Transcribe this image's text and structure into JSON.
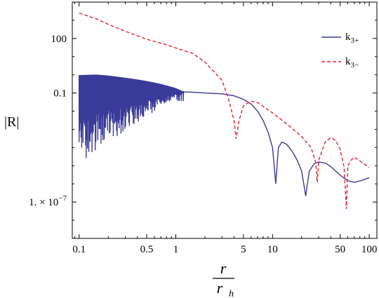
{
  "chart_data": {
    "type": "line",
    "title": "",
    "xlabel": {
      "numerator": "r",
      "denominator": "r",
      "denominator_subscript": "h"
    },
    "ylabel": "|R|",
    "x_scale": "log",
    "y_scale": "log",
    "xlim": [
      0.085,
      120
    ],
    "ylim": [
      1e-09,
      10000
    ],
    "grid": false,
    "legend_position": "top-right",
    "x_ticks": [
      {
        "value": 0.1,
        "label": "0.1"
      },
      {
        "value": 0.5,
        "label": "0.5"
      },
      {
        "value": 1,
        "label": "1"
      },
      {
        "value": 5,
        "label": "5"
      },
      {
        "value": 10,
        "label": "10"
      },
      {
        "value": 50,
        "label": "50"
      },
      {
        "value": 100,
        "label": "100"
      }
    ],
    "y_ticks": [
      {
        "value": 100,
        "label": "100"
      },
      {
        "value": 0.1,
        "label": "0.1"
      },
      {
        "value": 1e-07,
        "label": "1. × 10",
        "exponent": "−7"
      }
    ],
    "series": [
      {
        "name": "k3+",
        "name_main": "k",
        "name_sub": "3+",
        "color": "#3a3a9a",
        "style": "solid",
        "oscillation_region": {
          "x_end": 1.2,
          "upper_start": 8,
          "spike_min_floor": 1e-05
        },
        "points": [
          [
            0.1,
            0.12
          ],
          [
            0.15,
            0.15
          ],
          [
            0.2,
            0.15
          ],
          [
            0.3,
            0.14
          ],
          [
            0.5,
            0.13
          ],
          [
            0.8,
            0.12
          ],
          [
            1.0,
            0.12
          ],
          [
            1.5,
            0.11
          ],
          [
            2.0,
            0.1
          ],
          [
            3.0,
            0.09
          ],
          [
            4.0,
            0.07
          ],
          [
            5.0,
            0.045
          ],
          [
            6.0,
            0.025
          ],
          [
            7.0,
            0.01
          ],
          [
            8.0,
            0.003
          ],
          [
            9.0,
            0.0007
          ],
          [
            10.0,
            0.0001
          ],
          [
            10.8,
            1e-06
          ],
          [
            11.5,
            0.0001
          ],
          [
            12.5,
            0.0002
          ],
          [
            14.0,
            0.00015
          ],
          [
            16.0,
            6e-05
          ],
          [
            18.0,
            2e-05
          ],
          [
            20.0,
            5e-06
          ],
          [
            21.5,
            5e-07
          ],
          [
            22.0,
            2e-07
          ],
          [
            22.5,
            5e-07
          ],
          [
            24.0,
            5e-06
          ],
          [
            27.0,
            1.3e-05
          ],
          [
            30.0,
            1.6e-05
          ],
          [
            35.0,
            1.4e-05
          ],
          [
            40.0,
            9e-06
          ],
          [
            50.0,
            3e-06
          ],
          [
            60.0,
            1.5e-06
          ],
          [
            70.0,
            1.2e-06
          ],
          [
            85.0,
            1.6e-06
          ],
          [
            100.0,
            2.2e-06
          ]
        ]
      },
      {
        "name": "k3−",
        "name_main": "k",
        "name_sub": "3−",
        "color": "#e8222b",
        "style": "dashed",
        "points": [
          [
            0.1,
            2500
          ],
          [
            0.15,
            1200
          ],
          [
            0.2,
            600
          ],
          [
            0.3,
            250
          ],
          [
            0.5,
            90
          ],
          [
            0.8,
            45
          ],
          [
            1.0,
            30
          ],
          [
            1.5,
            15
          ],
          [
            2.0,
            5
          ],
          [
            3.0,
            0.5
          ],
          [
            3.5,
            0.05
          ],
          [
            4.0,
            0.003
          ],
          [
            4.2,
            0.0003
          ],
          [
            4.5,
            0.003
          ],
          [
            5.0,
            0.02
          ],
          [
            6.0,
            0.035
          ],
          [
            7.0,
            0.03
          ],
          [
            10.0,
            0.008
          ],
          [
            15.0,
            0.0015
          ],
          [
            20.0,
            0.0004
          ],
          [
            25.0,
            0.0001
          ],
          [
            28.0,
            1.5e-05
          ],
          [
            29.0,
            1e-06
          ],
          [
            30.0,
            2e-05
          ],
          [
            35.0,
            0.0002
          ],
          [
            40.0,
            0.00035
          ],
          [
            45.0,
            0.00025
          ],
          [
            50.0,
            8e-05
          ],
          [
            55.0,
            8e-06
          ],
          [
            58.0,
            4e-08
          ],
          [
            60.0,
            1e-05
          ],
          [
            65.0,
            2e-05
          ],
          [
            70.0,
            3e-05
          ],
          [
            80.0,
            1.8e-05
          ],
          [
            100.0,
            8e-06
          ]
        ]
      }
    ]
  }
}
